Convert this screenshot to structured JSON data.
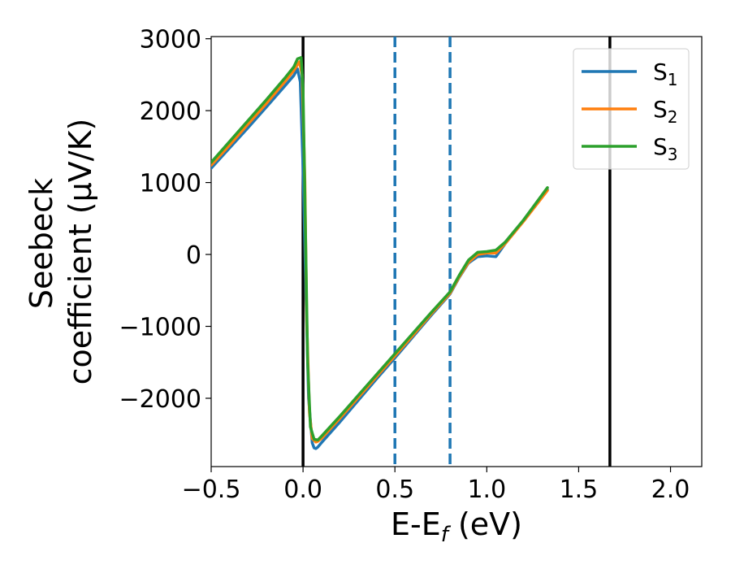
{
  "chart_data": {
    "type": "line",
    "xlabel": "E-E",
    "xlabel_sub": "f",
    "xlabel_unit": " (eV)",
    "ylabel_line1": "Seebeck",
    "ylabel_line2": "coefficient  (μV/K)",
    "xlim": [
      -0.5,
      2.17
    ],
    "ylim": [
      -2950,
      3030
    ],
    "xticks": [
      -0.5,
      0.0,
      0.5,
      1.0,
      1.5,
      2.0
    ],
    "xtick_labels": [
      "−0.5",
      "0.0",
      "0.5",
      "1.0",
      "1.5",
      "2.0"
    ],
    "yticks": [
      -2000,
      -1000,
      0,
      1000,
      2000,
      3000
    ],
    "ytick_labels": [
      "−2000",
      "−1000",
      "0",
      "1000",
      "2000",
      "3000"
    ],
    "grid": false,
    "legend_position": "top-right",
    "vlines": [
      {
        "x": 0.0,
        "color": "#000000",
        "style": "solid"
      },
      {
        "x": 1.67,
        "color": "#000000",
        "style": "solid"
      },
      {
        "x": 0.5,
        "color": "#1f77b4",
        "style": "dashed"
      },
      {
        "x": 0.8,
        "color": "#1f77b4",
        "style": "dashed"
      }
    ],
    "series": [
      {
        "name": "S",
        "subscript": "1",
        "color": "#1f77b4",
        "x": [
          -0.5,
          -0.4,
          -0.3,
          -0.2,
          -0.1,
          -0.05,
          -0.03,
          -0.015,
          0.0,
          0.015,
          0.03,
          0.05,
          0.06,
          0.07,
          0.08,
          0.1,
          0.2,
          0.3,
          0.4,
          0.5,
          0.6,
          0.7,
          0.8,
          0.85,
          0.9,
          0.95,
          1.0,
          1.05,
          1.1,
          1.2,
          1.33
        ],
        "y": [
          1200,
          1480,
          1760,
          2050,
          2340,
          2490,
          2580,
          2400,
          1200,
          -500,
          -2000,
          -2620,
          -2690,
          -2700,
          -2680,
          -2620,
          -2330,
          -2030,
          -1730,
          -1440,
          -1140,
          -840,
          -550,
          -320,
          -120,
          -30,
          -20,
          -30,
          150,
          470,
          900
        ]
      },
      {
        "name": "S",
        "subscript": "2",
        "color": "#ff7f0e",
        "x": [
          -0.5,
          -0.4,
          -0.3,
          -0.2,
          -0.1,
          -0.05,
          -0.02,
          -0.005,
          0.01,
          0.02,
          0.035,
          0.05,
          0.07,
          0.08,
          0.1,
          0.2,
          0.3,
          0.4,
          0.5,
          0.6,
          0.7,
          0.8,
          0.85,
          0.9,
          0.95,
          1.0,
          1.05,
          1.1,
          1.2,
          1.33
        ],
        "y": [
          1240,
          1520,
          1810,
          2100,
          2400,
          2560,
          2680,
          2500,
          1000,
          -900,
          -2200,
          -2560,
          -2610,
          -2600,
          -2560,
          -2280,
          -1990,
          -1700,
          -1410,
          -1120,
          -820,
          -540,
          -310,
          -110,
          0,
          20,
          20,
          150,
          460,
          890
        ]
      },
      {
        "name": "S",
        "subscript": "3",
        "color": "#2ca02c",
        "x": [
          -0.5,
          -0.4,
          -0.3,
          -0.2,
          -0.1,
          -0.05,
          -0.03,
          -0.01,
          0.0,
          0.01,
          0.025,
          0.04,
          0.06,
          0.08,
          0.1,
          0.2,
          0.3,
          0.4,
          0.5,
          0.6,
          0.7,
          0.8,
          0.85,
          0.9,
          0.95,
          1.0,
          1.05,
          1.1,
          1.2,
          1.33
        ],
        "y": [
          1280,
          1570,
          1860,
          2150,
          2450,
          2610,
          2720,
          2740,
          2300,
          800,
          -1500,
          -2400,
          -2570,
          -2580,
          -2530,
          -2250,
          -1960,
          -1670,
          -1380,
          -1090,
          -800,
          -520,
          -290,
          -80,
          30,
          40,
          60,
          170,
          480,
          930
        ]
      }
    ]
  }
}
